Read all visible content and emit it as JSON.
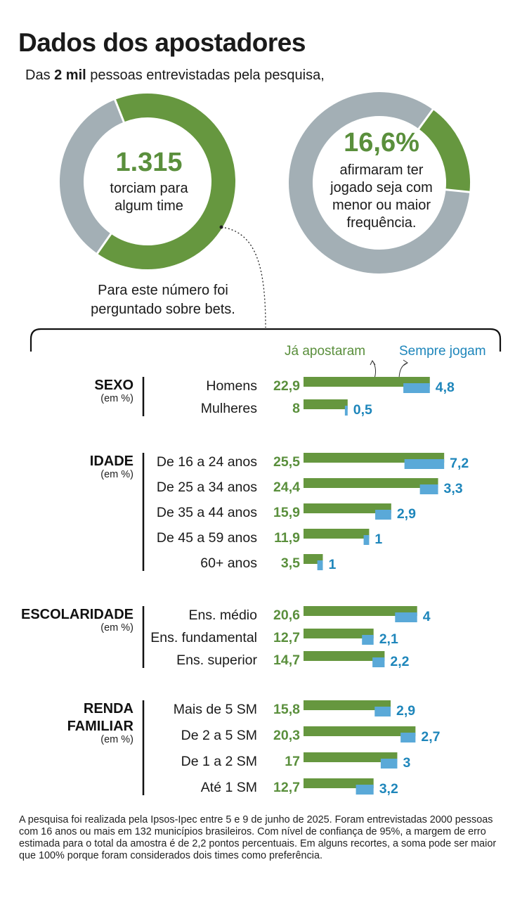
{
  "title": "Dados dos apostadores",
  "subtitle": {
    "pre": "Das ",
    "bold": "2 mil",
    "post": " pessoas entrevistadas pela pesquisa,"
  },
  "donut1": {
    "value_label": "1.315",
    "text": "torciam para algum time",
    "fraction": 0.6575
  },
  "donut2": {
    "value_label": "16,6%",
    "text": "afirmaram ter jogado seja com menor ou maior frequência.",
    "fraction": 0.166
  },
  "note": "Para este número foi perguntado sobre bets.",
  "legend": {
    "green": "Já apostaram",
    "blue": "Sempre jogam"
  },
  "colors": {
    "green": "#66973f",
    "blue": "#5aa9d8",
    "blue_text": "#1e86bb",
    "green_text": "#5a8f3c",
    "grey": "#a3afb5"
  },
  "chart_data": {
    "type": "bar",
    "series": [
      {
        "name": "Já apostaram"
      },
      {
        "name": "Sempre jogam"
      }
    ],
    "groups": [
      {
        "title": "SEXO",
        "unit": "(em %)",
        "rows": [
          {
            "label": "Homens",
            "green": 22.9,
            "green_label": "22,9",
            "blue": 4.8,
            "blue_label": "4,8"
          },
          {
            "label": "Mulheres",
            "green": 8,
            "green_label": "8",
            "blue": 0.5,
            "blue_label": "0,5"
          }
        ]
      },
      {
        "title": "IDADE",
        "unit": "(em %)",
        "rows": [
          {
            "label": "De 16 a 24 anos",
            "green": 25.5,
            "green_label": "25,5",
            "blue": 7.2,
            "blue_label": "7,2"
          },
          {
            "label": "De 25 a  34 anos",
            "green": 24.4,
            "green_label": "24,4",
            "blue": 3.3,
            "blue_label": "3,3"
          },
          {
            "label": "De 35 a 44 anos",
            "green": 15.9,
            "green_label": "15,9",
            "blue": 2.9,
            "blue_label": "2,9"
          },
          {
            "label": "De 45 a 59 anos",
            "green": 11.9,
            "green_label": "11,9",
            "blue": 1,
            "blue_label": "1"
          },
          {
            "label": "60+ anos",
            "green": 3.5,
            "green_label": "3,5",
            "blue": 1,
            "blue_label": "1"
          }
        ]
      },
      {
        "title": "ESCOLARIDADE",
        "unit": "(em %)",
        "rows": [
          {
            "label": "Ens. médio",
            "green": 20.6,
            "green_label": "20,6",
            "blue": 4,
            "blue_label": "4"
          },
          {
            "label": "Ens. fundamental",
            "green": 12.7,
            "green_label": "12,7",
            "blue": 2.1,
            "blue_label": "2,1"
          },
          {
            "label": "Ens. superior",
            "green": 14.7,
            "green_label": "14,7",
            "blue": 2.2,
            "blue_label": "2,2"
          }
        ]
      },
      {
        "title": "RENDA FAMILIAR",
        "unit": "(em %)",
        "rows": [
          {
            "label": "Mais de 5 SM",
            "green": 15.8,
            "green_label": "15,8",
            "blue": 2.9,
            "blue_label": "2,9"
          },
          {
            "label": "De 2 a 5 SM",
            "green": 20.3,
            "green_label": "20,3",
            "blue": 2.7,
            "blue_label": "2,7"
          },
          {
            "label": "De 1 a 2 SM",
            "green": 17,
            "green_label": "17",
            "blue": 3,
            "blue_label": "3"
          },
          {
            "label": "Até 1 SM",
            "green": 12.7,
            "green_label": "12,7",
            "blue": 3.2,
            "blue_label": "3,2"
          }
        ]
      }
    ]
  },
  "footer": "A pesquisa foi realizada pela Ipsos-Ipec entre 5 e 9 de junho de 2025. Foram entrevistadas 2000 pessoas com 16 anos ou mais em 132 municípios brasileiros. Com nível de confiança de 95%, a margem de erro estimada para o total da amostra é de 2,2 pontos percentuais. Em alguns recortes, a soma pode ser maior que 100% porque foram considerados dois times como preferência."
}
